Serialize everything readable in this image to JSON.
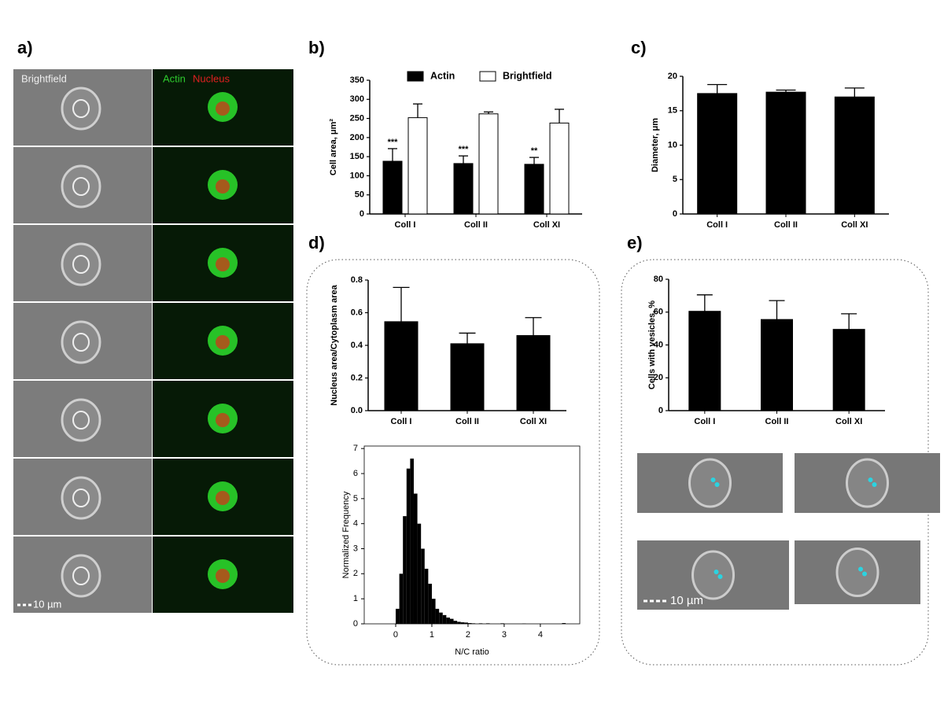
{
  "panel_labels": [
    "a)",
    "b)",
    "c)",
    "d)",
    "e)"
  ],
  "panel_a": {
    "brightfield_label": "Brightfield",
    "actin_label": "Actin",
    "nucleus_label": "Nucleus",
    "scale_bar": "10 µm"
  },
  "panel_e": {
    "scale_bar": "10 µm"
  },
  "chart_data": [
    {
      "type": "bar",
      "y_label": "Cell area, μm²",
      "categories": [
        "Coll I",
        "Coll II",
        "Coll XI"
      ],
      "series": [
        {
          "name": "Actin",
          "color": "#000000",
          "values": [
            138,
            132,
            130
          ],
          "errors": [
            33,
            20,
            18
          ],
          "significance": [
            "***",
            "***",
            "**"
          ]
        },
        {
          "name": "Brightfield",
          "color": "#ffffff",
          "values": [
            252,
            262,
            238
          ],
          "errors": [
            36,
            5,
            36
          ]
        }
      ],
      "ylim": [
        0,
        350
      ],
      "yticks": [
        0,
        50,
        100,
        150,
        200,
        250,
        300,
        350
      ],
      "legend": "top"
    },
    {
      "type": "bar",
      "y_label": "Diameter, μm",
      "categories": [
        "Coll I",
        "Coll II",
        "Coll XI"
      ],
      "series": [
        {
          "color": "#000000",
          "values": [
            17.5,
            17.7,
            17.0
          ],
          "errors": [
            1.3,
            0.3,
            1.3
          ]
        }
      ],
      "ylim": [
        0,
        20
      ],
      "yticks": [
        0,
        5,
        10,
        15,
        20
      ]
    },
    {
      "type": "bar",
      "y_label": "Nucleus area/Cytoplasm area",
      "categories": [
        "Coll I",
        "Coll II",
        "Coll XI"
      ],
      "series": [
        {
          "color": "#000000",
          "values": [
            0.545,
            0.41,
            0.46
          ],
          "errors": [
            0.21,
            0.065,
            0.11
          ]
        }
      ],
      "ylim": [
        0,
        0.8
      ],
      "yticks": [
        {
          "value": 0,
          "label": "0.0"
        },
        0.2,
        0.4,
        0.6,
        0.8
      ]
    },
    {
      "type": "histogram",
      "x_label": "N/C ratio",
      "y_label": "Normalized Frequency",
      "color": "#000000",
      "bins": [
        0,
        0.1,
        0.2,
        0.3,
        0.4,
        0.5,
        0.6,
        0.7,
        0.8,
        0.9,
        1.0,
        1.1,
        1.2,
        1.3,
        1.4,
        1.5,
        1.6,
        1.7,
        1.8,
        1.9,
        2.0,
        2.1,
        2.2,
        2.3,
        2.4,
        2.5,
        2.6,
        2.7,
        2.8,
        2.9,
        3.0,
        3.1,
        3.2,
        3.3,
        3.4,
        3.5,
        3.6,
        3.7,
        3.8,
        3.9,
        4.0,
        4.1,
        4.2,
        4.3,
        4.4,
        4.5,
        4.6,
        4.7
      ],
      "counts": [
        0.6,
        2.0,
        4.3,
        6.2,
        6.6,
        5.2,
        4.0,
        3.0,
        2.2,
        1.6,
        1.0,
        0.6,
        0.45,
        0.35,
        0.25,
        0.2,
        0.12,
        0.08,
        0.06,
        0.05,
        0.03,
        0.02,
        0,
        0.02,
        0,
        0.02,
        0,
        0,
        0,
        0.02,
        0,
        0,
        0,
        0,
        0,
        0.01,
        0,
        0,
        0,
        0,
        0,
        0,
        0,
        0,
        0,
        0,
        0.03
      ],
      "xlim": [
        -0.87,
        5.09
      ],
      "xticks": [
        0,
        1,
        2,
        3,
        4
      ],
      "ylim": [
        0,
        7.1
      ],
      "yticks": [
        0,
        1,
        2,
        3,
        4,
        5,
        6,
        7
      ]
    },
    {
      "type": "bar",
      "y_label": "Cells with vesicles, %",
      "categories": [
        "Coll I",
        "Coll II",
        "Coll XI"
      ],
      "series": [
        {
          "color": "#000000",
          "values": [
            60.5,
            55.5,
            49.5
          ],
          "errors": [
            10,
            11.5,
            9.5
          ]
        }
      ],
      "ylim": [
        0,
        80
      ],
      "yticks": [
        0,
        20,
        40,
        60,
        80
      ]
    }
  ]
}
